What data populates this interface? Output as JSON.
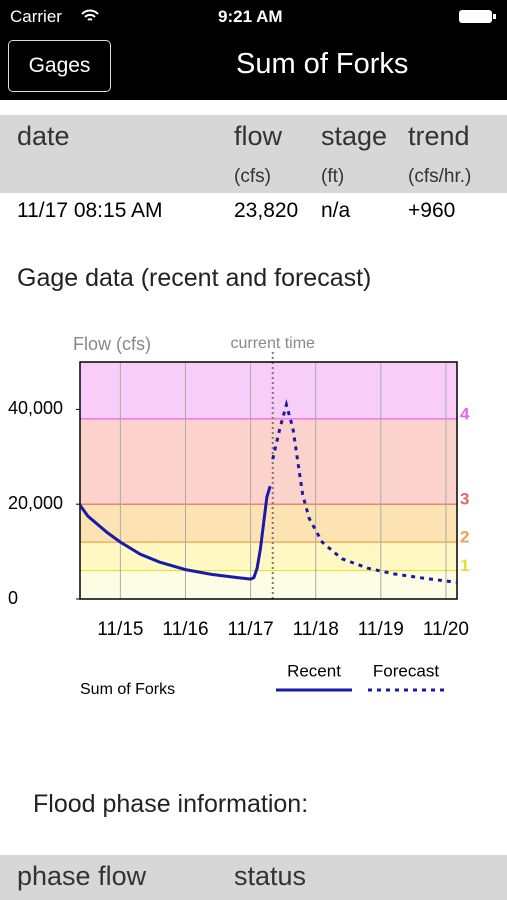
{
  "status_bar": {
    "carrier": "Carrier",
    "time": "9:21 AM"
  },
  "nav": {
    "back": "Gages",
    "title": "Sum of Forks"
  },
  "table": {
    "headers": [
      "date",
      "flow",
      "stage",
      "trend"
    ],
    "units": [
      "(cfs)",
      "(ft)",
      "(cfs/hr.)"
    ],
    "rows": [
      [
        "11/17 08:15 AM",
        "23,820",
        "n/a",
        "+960"
      ]
    ]
  },
  "section_title": "Gage data (recent and forecast)",
  "chart_data": {
    "type": "line",
    "y_label": "Flow (cfs)",
    "annotation": "current time",
    "current_time_x": 17.34,
    "caption": "Sum of Forks",
    "xlim": [
      14.38,
      20.17
    ],
    "xticks": [
      {
        "value": 15,
        "label": "11/15"
      },
      {
        "value": 16,
        "label": "11/16"
      },
      {
        "value": 17,
        "label": "11/17"
      },
      {
        "value": 18,
        "label": "11/18"
      },
      {
        "value": 19,
        "label": "11/19"
      },
      {
        "value": 20,
        "label": "11/20"
      }
    ],
    "ylim": [
      0,
      50000
    ],
    "yticks": [
      0,
      {
        "value": 20000,
        "label": "20,000"
      },
      {
        "value": 40000,
        "label": "40,000"
      }
    ],
    "base_band": "#fdfde6",
    "phases": [
      {
        "label": "1",
        "value": 6000,
        "color": "#e6e030",
        "band": "#fff8c2"
      },
      {
        "label": "2",
        "value": 12000,
        "color": "#f0a050",
        "band": "#fde3b4"
      },
      {
        "label": "3",
        "value": 20000,
        "color": "#e06a60",
        "band": "#fbd3cc"
      },
      {
        "label": "4",
        "value": 38000,
        "color": "#f060f0",
        "band": "#f8cdf8"
      }
    ],
    "series": [
      {
        "name": "Recent",
        "color": "#1a1aaa",
        "dash": false,
        "x": [
          14.38,
          14.5,
          14.8,
          15.0,
          15.3,
          15.6,
          16.0,
          16.4,
          16.8,
          17.0,
          17.05,
          17.1,
          17.15,
          17.2,
          17.25,
          17.3
        ],
        "values": [
          19800,
          17500,
          14000,
          12000,
          9500,
          7800,
          6200,
          5200,
          4500,
          4200,
          4500,
          6500,
          10500,
          16000,
          21500,
          23800
        ]
      },
      {
        "name": "Forecast",
        "color": "#1a1aaa",
        "dash": true,
        "x": [
          17.34,
          17.45,
          17.55,
          17.65,
          17.8,
          17.9,
          18.1,
          18.4,
          18.8,
          19.2,
          19.6,
          20.0,
          20.17
        ],
        "values": [
          29500,
          36000,
          41000,
          36000,
          22000,
          17000,
          12000,
          8500,
          6500,
          5300,
          4500,
          3800,
          3500
        ]
      }
    ]
  },
  "phase_section": {
    "title": "Flood phase information:",
    "headers": [
      "phase flow",
      "status"
    ]
  }
}
